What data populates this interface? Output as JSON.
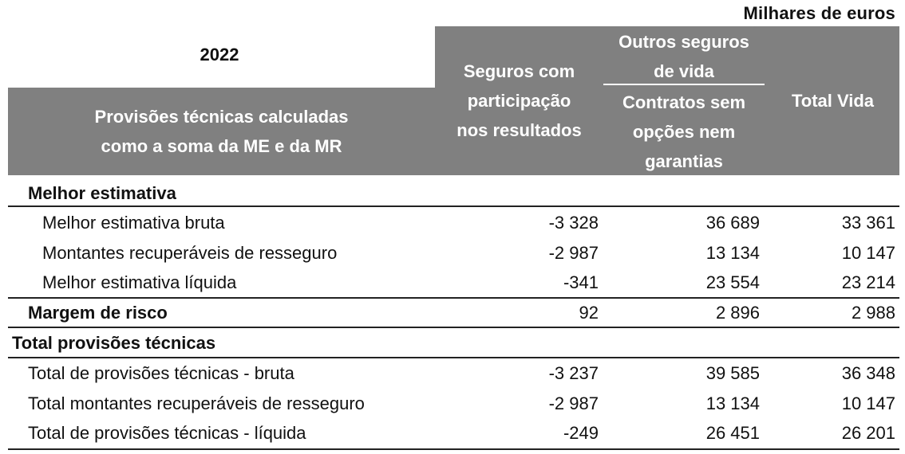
{
  "units": "Milhares de euros",
  "header": {
    "year": "2022",
    "row_header_lines": [
      "Provisões técnicas calculadas",
      "como a soma da ME e da MR"
    ],
    "col1_lines": [
      "Seguros com",
      "participação",
      "nos resultados"
    ],
    "col2_group_lines": [
      "Outros seguros",
      "de vida"
    ],
    "col2_sub_lines": [
      "Contratos sem",
      "opções nem",
      "garantias"
    ],
    "col3": "Total Vida"
  },
  "sections": [
    {
      "title": "Melhor estimativa",
      "rows": [
        {
          "label": "Melhor estimativa bruta",
          "c1": "-3 328",
          "c2": "36 689",
          "c3": "33 361"
        },
        {
          "label": "Montantes recuperáveis de resseguro",
          "c1": "-2 987",
          "c2": "13 134",
          "c3": "10 147"
        },
        {
          "label": "Melhor estimativa líquida",
          "c1": "-341",
          "c2": "23 554",
          "c3": "23 214"
        }
      ]
    },
    {
      "title": "Margem de risco",
      "c1": "92",
      "c2": "2 896",
      "c3": "2 988"
    },
    {
      "title": "Total provisões técnicas",
      "rows": [
        {
          "label": "Total de provisões técnicas - bruta",
          "c1": "-3 237",
          "c2": "39 585",
          "c3": "36 348"
        },
        {
          "label": "Total montantes recuperáveis de resseguro",
          "c1": "-2 987",
          "c2": "13 134",
          "c3": "10 147"
        },
        {
          "label": "Total de provisões técnicas - líquida",
          "c1": "-249",
          "c2": "26 451",
          "c3": "26 201"
        }
      ]
    }
  ]
}
